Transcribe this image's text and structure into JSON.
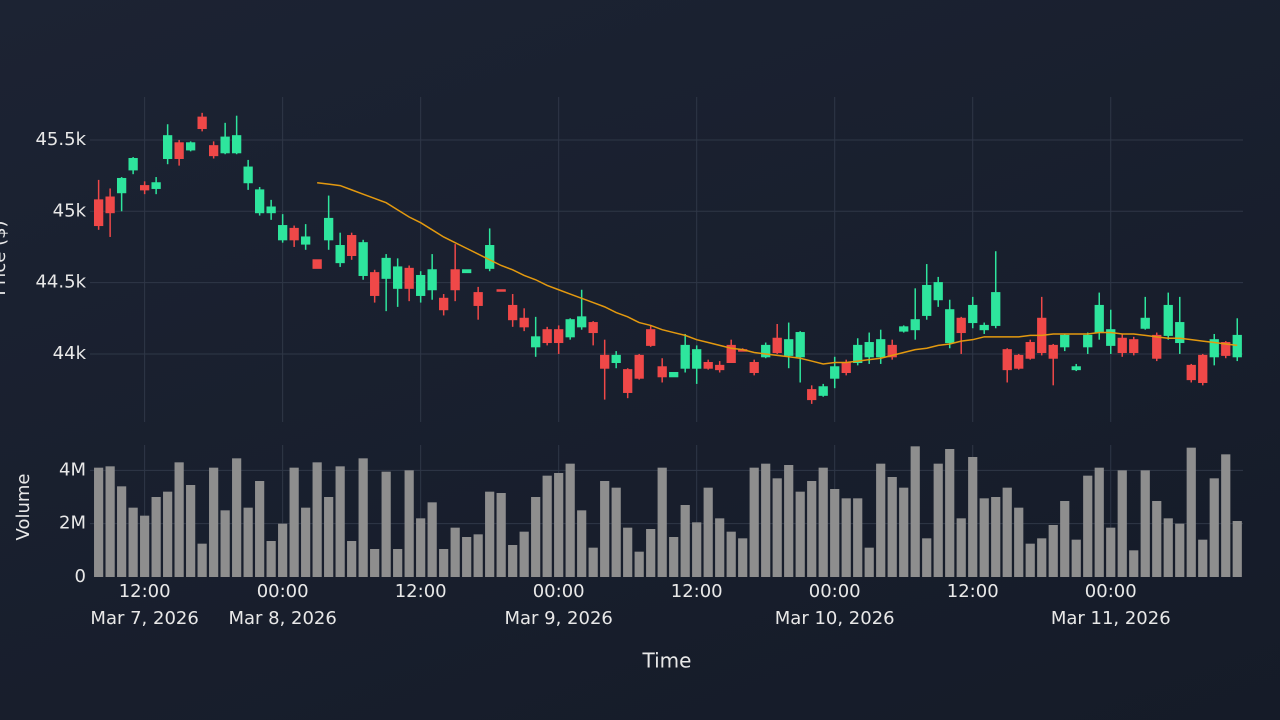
{
  "chart_data": [
    {
      "type": "candlestick",
      "ylabel": "Price ($)",
      "x": [
        "2026-03-07T08:00",
        "2026-03-07T09:00",
        "2026-03-07T10:00",
        "2026-03-07T11:00",
        "2026-03-07T12:00",
        "2026-03-07T13:00",
        "2026-03-07T14:00",
        "2026-03-07T15:00",
        "2026-03-07T16:00",
        "2026-03-07T17:00",
        "2026-03-07T18:00",
        "2026-03-07T19:00",
        "2026-03-07T20:00",
        "2026-03-07T21:00",
        "2026-03-07T22:00",
        "2026-03-07T23:00",
        "2026-03-08T00:00",
        "2026-03-08T01:00",
        "2026-03-08T02:00",
        "2026-03-08T03:00",
        "2026-03-08T04:00",
        "2026-03-08T05:00",
        "2026-03-08T06:00",
        "2026-03-08T07:00",
        "2026-03-08T08:00",
        "2026-03-08T09:00",
        "2026-03-08T10:00",
        "2026-03-08T11:00",
        "2026-03-08T12:00",
        "2026-03-08T13:00",
        "2026-03-08T14:00",
        "2026-03-08T15:00",
        "2026-03-08T16:00",
        "2026-03-08T17:00",
        "2026-03-08T18:00",
        "2026-03-08T19:00",
        "2026-03-08T20:00",
        "2026-03-08T21:00",
        "2026-03-08T22:00",
        "2026-03-08T23:00",
        "2026-03-09T00:00",
        "2026-03-09T01:00",
        "2026-03-09T02:00",
        "2026-03-09T03:00",
        "2026-03-09T04:00",
        "2026-03-09T05:00",
        "2026-03-09T06:00",
        "2026-03-09T07:00",
        "2026-03-09T08:00",
        "2026-03-09T09:00",
        "2026-03-09T10:00",
        "2026-03-09T11:00",
        "2026-03-09T12:00",
        "2026-03-09T13:00",
        "2026-03-09T14:00",
        "2026-03-09T15:00",
        "2026-03-09T16:00",
        "2026-03-09T17:00",
        "2026-03-09T18:00",
        "2026-03-09T19:00",
        "2026-03-09T20:00",
        "2026-03-09T21:00",
        "2026-03-09T22:00",
        "2026-03-09T23:00",
        "2026-03-10T00:00",
        "2026-03-10T01:00",
        "2026-03-10T02:00",
        "2026-03-10T03:00",
        "2026-03-10T04:00",
        "2026-03-10T05:00",
        "2026-03-10T06:00",
        "2026-03-10T07:00",
        "2026-03-10T08:00",
        "2026-03-10T09:00",
        "2026-03-10T10:00",
        "2026-03-10T11:00",
        "2026-03-10T12:00",
        "2026-03-10T13:00",
        "2026-03-10T14:00",
        "2026-03-10T15:00",
        "2026-03-10T16:00",
        "2026-03-10T17:00",
        "2026-03-10T18:00",
        "2026-03-10T19:00",
        "2026-03-10T20:00",
        "2026-03-10T21:00",
        "2026-03-10T22:00",
        "2026-03-10T23:00",
        "2026-03-11T00:00",
        "2026-03-11T01:00",
        "2026-03-11T02:00",
        "2026-03-11T03:00",
        "2026-03-11T04:00",
        "2026-03-11T05:00",
        "2026-03-11T06:00",
        "2026-03-11T07:00",
        "2026-03-11T08:00",
        "2026-03-11T09:00",
        "2026-03-11T10:00",
        "2026-03-11T11:00"
      ],
      "open": [
        45080,
        45100,
        45130,
        45290,
        45180,
        45160,
        45370,
        45480,
        45430,
        45660,
        45460,
        45410,
        45410,
        45200,
        44990,
        44990,
        44800,
        44880,
        44770,
        44660,
        44800,
        44640,
        44830,
        44550,
        44570,
        44530,
        44460,
        44600,
        44410,
        44450,
        44390,
        44590,
        44570,
        44430,
        44600,
        44450,
        44340,
        44250,
        44050,
        44170,
        44170,
        44120,
        44190,
        44220,
        43990,
        43940,
        43890,
        43990,
        44170,
        43910,
        43840,
        43900,
        43900,
        43940,
        43920,
        44060,
        44030,
        43940,
        43980,
        44110,
        43990,
        43980,
        43750,
        43710,
        43830,
        43940,
        43940,
        43980,
        43980,
        44060,
        44160,
        44170,
        44270,
        44380,
        44080,
        44250,
        44220,
        44170,
        44200,
        44030,
        43990,
        44080,
        44250,
        44060,
        44050,
        43890,
        44050,
        44150,
        44060,
        44110,
        44100,
        44180,
        44130,
        44130,
        44080,
        43920,
        43990,
        43980,
        44080,
        43980
      ],
      "high": [
        45220,
        45160,
        45240,
        45380,
        45210,
        45240,
        45610,
        45500,
        45490,
        45690,
        45490,
        45620,
        45670,
        45360,
        45170,
        45080,
        44980,
        44900,
        44910,
        44660,
        45110,
        44850,
        44850,
        44800,
        44590,
        44700,
        44670,
        44620,
        44580,
        44700,
        44420,
        44770,
        44590,
        44470,
        44880,
        44450,
        44420,
        44320,
        44260,
        44190,
        44200,
        44250,
        44450,
        44230,
        44100,
        44020,
        43900,
        44000,
        44200,
        43970,
        43870,
        44140,
        44060,
        43960,
        43950,
        44100,
        44040,
        43960,
        44080,
        44210,
        44220,
        44160,
        43780,
        43790,
        43980,
        43960,
        44110,
        44150,
        44170,
        44100,
        44200,
        44460,
        44630,
        44540,
        44380,
        44260,
        44400,
        44220,
        44720,
        44040,
        44000,
        44100,
        44400,
        44070,
        44140,
        43930,
        44150,
        44430,
        44310,
        44140,
        44120,
        44400,
        44150,
        44430,
        44400,
        43930,
        44000,
        44140,
        44090,
        44250
      ],
      "low": [
        44870,
        44820,
        45000,
        45260,
        45120,
        45120,
        45330,
        45320,
        45420,
        45560,
        45370,
        45400,
        45400,
        45150,
        44970,
        44940,
        44780,
        44750,
        44730,
        44600,
        44730,
        44610,
        44660,
        44520,
        44360,
        44300,
        44330,
        44370,
        44360,
        44380,
        44270,
        44370,
        44570,
        44240,
        44580,
        44440,
        44190,
        44160,
        43980,
        44060,
        44000,
        44100,
        44170,
        44060,
        43680,
        43900,
        43690,
        43820,
        44050,
        43800,
        43840,
        43870,
        43790,
        43890,
        43870,
        43940,
        44020,
        43850,
        43970,
        44000,
        43900,
        43800,
        43650,
        43700,
        43760,
        43850,
        43920,
        43930,
        43930,
        43960,
        44150,
        44100,
        44240,
        44330,
        44040,
        44000,
        44180,
        44140,
        44180,
        43800,
        43890,
        43960,
        43990,
        43780,
        44020,
        43880,
        44000,
        44100,
        44000,
        43980,
        43990,
        44170,
        43950,
        44100,
        44000,
        43800,
        43780,
        43920,
        43970,
        43950
      ],
      "close": [
        44900,
        44990,
        45230,
        45370,
        45150,
        45200,
        45530,
        45370,
        45480,
        45580,
        45390,
        45520,
        45530,
        45310,
        45150,
        45030,
        44900,
        44800,
        44820,
        44600,
        44950,
        44760,
        44690,
        44780,
        44410,
        44670,
        44610,
        44460,
        44550,
        44590,
        44310,
        44450,
        44590,
        44340,
        44760,
        44440,
        44240,
        44190,
        44120,
        44080,
        44080,
        44240,
        44260,
        44150,
        43900,
        43990,
        43730,
        43830,
        44060,
        43840,
        43870,
        44060,
        44030,
        43900,
        43890,
        43940,
        44020,
        43870,
        44060,
        44010,
        44100,
        44150,
        43680,
        43770,
        43910,
        43870,
        44060,
        44080,
        44100,
        43980,
        44190,
        44240,
        44480,
        44500,
        44310,
        44150,
        44340,
        44200,
        44430,
        43890,
        43900,
        43970,
        44010,
        43970,
        44130,
        43910,
        44130,
        44340,
        44170,
        44010,
        44010,
        44250,
        43970,
        44340,
        44220,
        43820,
        43800,
        44100,
        43990,
        44130
      ],
      "increasing_color": "#2ee59d",
      "decreasing_color": "#ef4848",
      "lines": [
        {
          "color": "#e3990f",
          "values": [
            null,
            null,
            null,
            null,
            null,
            null,
            null,
            null,
            null,
            null,
            null,
            null,
            null,
            null,
            null,
            null,
            null,
            null,
            null,
            45200,
            45190,
            45180,
            45150,
            45120,
            45090,
            45060,
            45010,
            44960,
            44920,
            44870,
            44820,
            44780,
            44740,
            44700,
            44660,
            44620,
            44590,
            44550,
            44520,
            44480,
            44450,
            44420,
            44390,
            44360,
            44330,
            44290,
            44260,
            44220,
            44200,
            44170,
            44150,
            44130,
            44100,
            44080,
            44060,
            44040,
            44030,
            44010,
            44000,
            43990,
            43980,
            43970,
            43950,
            43930,
            43940,
            43940,
            43950,
            43960,
            43970,
            43990,
            44010,
            44030,
            44040,
            44060,
            44070,
            44090,
            44100,
            44120,
            44120,
            44120,
            44120,
            44130,
            44130,
            44140,
            44140,
            44140,
            44140,
            44150,
            44150,
            44140,
            44140,
            44130,
            44120,
            44110,
            44110,
            44100,
            44090,
            44080,
            44070,
            44060
          ]
        }
      ],
      "xlim": [
        "2026-03-07T07:15",
        "2026-03-11T11:30"
      ],
      "ylim": [
        43523,
        45801
      ],
      "yticks": [
        {
          "value": 44000,
          "label": "44k"
        },
        {
          "value": 44500,
          "label": "44.5k"
        },
        {
          "value": 45000,
          "label": "45k"
        },
        {
          "value": 45500,
          "label": "45.5k"
        }
      ],
      "grid": true
    },
    {
      "type": "bar",
      "ylabel": "Volume",
      "xlabel": "Time",
      "color": "#8e8e8e",
      "values": [
        4100000,
        4150000,
        3400000,
        2600000,
        2300000,
        3000000,
        3200000,
        4300000,
        3450000,
        1250000,
        4100000,
        2500000,
        4450000,
        2600000,
        3600000,
        1350000,
        2000000,
        4100000,
        2600000,
        4300000,
        3000000,
        4150000,
        1350000,
        4450000,
        1050000,
        3950000,
        1050000,
        4000000,
        2200000,
        2800000,
        1050000,
        1850000,
        1500000,
        1600000,
        3200000,
        3150000,
        1200000,
        1700000,
        3000000,
        3800000,
        3900000,
        4250000,
        2500000,
        1100000,
        3600000,
        3350000,
        1850000,
        950000,
        1800000,
        4100000,
        1500000,
        2700000,
        2050000,
        3350000,
        2200000,
        1700000,
        1450000,
        4100000,
        4250000,
        3700000,
        4200000,
        3200000,
        3600000,
        4100000,
        3300000,
        2950000,
        2950000,
        1100000,
        4250000,
        3750000,
        3350000,
        4900000,
        1450000,
        4250000,
        4800000,
        2200000,
        4500000,
        2950000,
        3000000,
        3350000,
        2600000,
        1250000,
        1450000,
        1950000,
        2850000,
        1400000,
        3800000,
        4100000,
        1850000,
        4000000,
        1000000,
        4000000,
        2850000,
        2200000,
        2000000,
        4850000,
        1400000,
        3700000,
        4600000,
        2100000
      ],
      "xlim": [
        "2026-03-07T07:15",
        "2026-03-11T11:30"
      ],
      "ylim": [
        0,
        4950000
      ],
      "yticks": [
        0,
        {
          "value": 2000000,
          "label": "2M"
        },
        {
          "value": 4000000,
          "label": "4M"
        }
      ],
      "xticks": [
        {
          "value": "2026-03-07T12:00",
          "label": "12:00"
        },
        {
          "value": "2026-03-08T00:00",
          "label": "00:00"
        },
        {
          "value": "2026-03-08T12:00",
          "label": "12:00"
        },
        {
          "value": "2026-03-09T00:00",
          "label": "00:00"
        },
        {
          "value": "2026-03-09T12:00",
          "label": "12:00"
        },
        {
          "value": "2026-03-10T00:00",
          "label": "00:00"
        },
        {
          "value": "2026-03-10T12:00",
          "label": "12:00"
        },
        {
          "value": "2026-03-11T00:00",
          "label": "00:00"
        }
      ],
      "xtick_dates": [
        {
          "value": "2026-03-07T12:00",
          "label": "Mar 7, 2026"
        },
        {
          "value": "2026-03-08T00:00",
          "label": "Mar 8, 2026"
        },
        {
          "value": "2026-03-09T00:00",
          "label": "Mar 9, 2026"
        },
        {
          "value": "2026-03-10T00:00",
          "label": "Mar 10, 2026"
        },
        {
          "value": "2026-03-11T00:00",
          "label": "Mar 11, 2026"
        }
      ],
      "grid": true
    }
  ]
}
